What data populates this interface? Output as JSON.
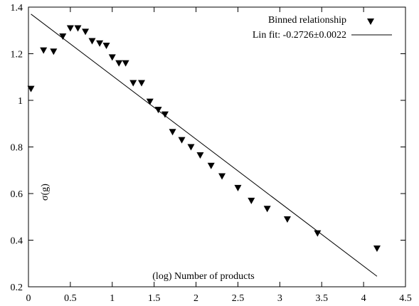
{
  "chart_data": {
    "type": "scatter",
    "xlabel": "(log) Number of products",
    "ylabel": "σ(g)",
    "xlim": [
      0,
      4.5
    ],
    "ylim": [
      0.2,
      1.4
    ],
    "x_ticks": [
      "0",
      "0.5",
      "1",
      "1.5",
      "2",
      "2.5",
      "3",
      "3.5",
      "4",
      "4.5"
    ],
    "y_ticks": [
      "0.2",
      "0.4",
      "0.6",
      "0.8",
      "1",
      "1.2",
      "1.4"
    ],
    "x_tick_values": [
      0,
      0.5,
      1,
      1.5,
      2,
      2.5,
      3,
      3.5,
      4,
      4.5
    ],
    "y_tick_values": [
      0.2,
      0.4,
      0.6,
      0.8,
      1.0,
      1.2,
      1.4
    ],
    "grid": false,
    "legend_position": "top-right",
    "series": [
      {
        "name": "Binned relationship",
        "marker": "triangle-down",
        "x": [
          0.03,
          0.18,
          0.3,
          0.41,
          0.5,
          0.59,
          0.68,
          0.76,
          0.85,
          0.93,
          1.0,
          1.08,
          1.16,
          1.25,
          1.35,
          1.45,
          1.55,
          1.63,
          1.72,
          1.83,
          1.94,
          2.05,
          2.18,
          2.31,
          2.5,
          2.66,
          2.85,
          3.09,
          3.45,
          4.16
        ],
        "y": [
          1.05,
          1.215,
          1.21,
          1.275,
          1.31,
          1.31,
          1.295,
          1.255,
          1.245,
          1.235,
          1.185,
          1.16,
          1.16,
          1.075,
          1.075,
          0.995,
          0.96,
          0.94,
          0.865,
          0.83,
          0.8,
          0.765,
          0.72,
          0.675,
          0.625,
          0.57,
          0.535,
          0.49,
          0.43,
          0.365
        ]
      },
      {
        "name": "Lin fit: -0.2726±0.0022",
        "type": "line",
        "x": [
          0.03,
          4.16
        ],
        "y": [
          1.37,
          0.245
        ]
      }
    ]
  }
}
